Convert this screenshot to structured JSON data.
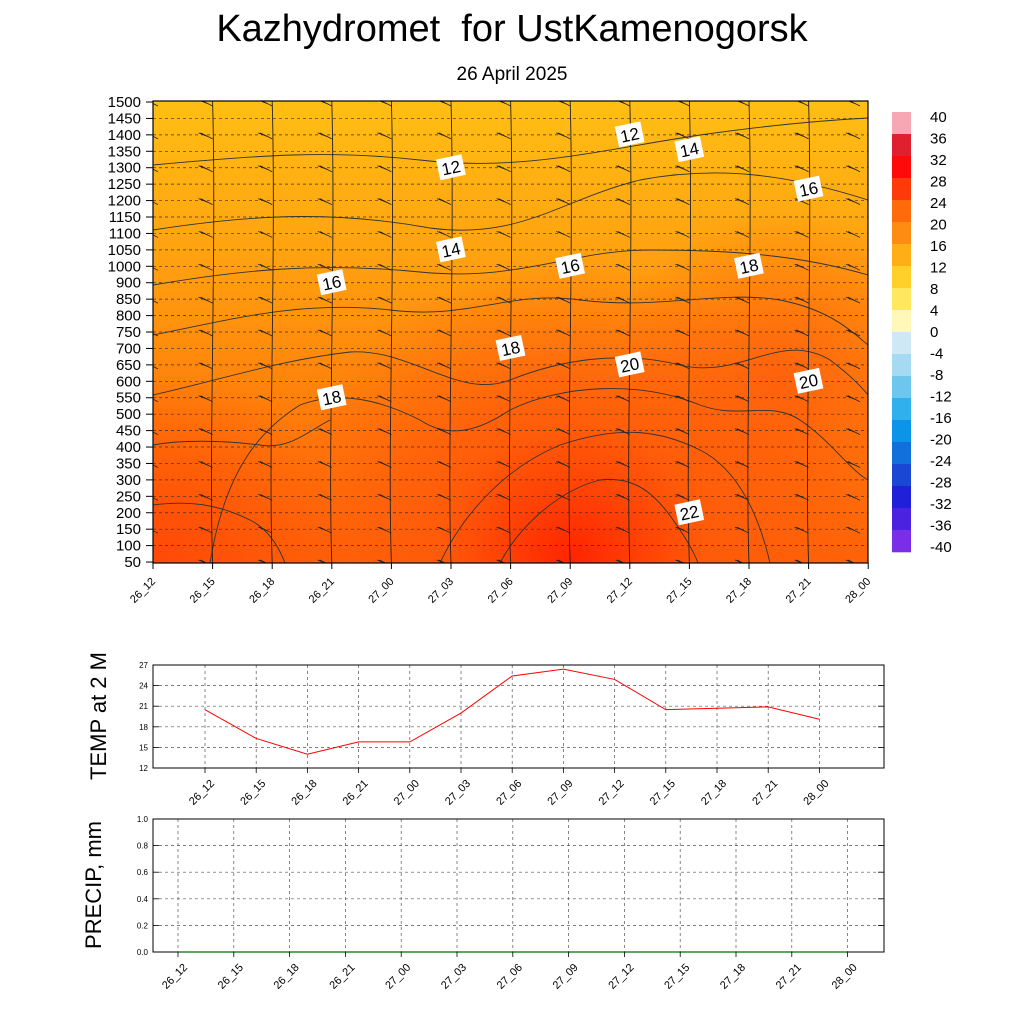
{
  "header": {
    "title": "Kazhydromet  for UstKamenogorsk",
    "date": "26 April 2025"
  },
  "time_labels": [
    "26_12",
    "26_15",
    "26_18",
    "26_21",
    "27_00",
    "27_03",
    "27_06",
    "27_09",
    "27_12",
    "27_15",
    "27_18",
    "27_21",
    "28_00"
  ],
  "colors": {
    "temp_line": "#ff0000",
    "precip_line": "#007000",
    "grid": "#555555"
  },
  "chart_data": [
    {
      "type": "heatmap",
      "name": "cross-section",
      "x_categories": [
        "26_12",
        "26_15",
        "26_18",
        "26_21",
        "27_00",
        "27_03",
        "27_06",
        "27_09",
        "27_12",
        "27_15",
        "27_18",
        "27_21",
        "28_00"
      ],
      "y_ticks": [
        1500,
        1450,
        1400,
        1350,
        1300,
        1250,
        1200,
        1150,
        1100,
        1050,
        1000,
        900,
        850,
        800,
        750,
        700,
        650,
        600,
        550,
        500,
        450,
        400,
        350,
        300,
        250,
        200,
        150,
        100,
        50
      ],
      "ylim": [
        50,
        1500
      ],
      "contour_labels": [
        {
          "value": "12",
          "x": "27_03",
          "level": 1300
        },
        {
          "value": "12",
          "x": "27_12",
          "level": 1400
        },
        {
          "value": "14",
          "x": "27_15",
          "level": 1355
        },
        {
          "value": "16",
          "x": "27_21",
          "level": 1235
        },
        {
          "value": "14",
          "x": "27_03",
          "level": 1050
        },
        {
          "value": "16",
          "x": "26_21",
          "level": 900
        },
        {
          "value": "16",
          "x": "27_09",
          "level": 1000
        },
        {
          "value": "18",
          "x": "27_18",
          "level": 1000
        },
        {
          "value": "18",
          "x": "27_06",
          "level": 700
        },
        {
          "value": "20",
          "x": "27_12",
          "level": 650
        },
        {
          "value": "20",
          "x": "27_21",
          "level": 600
        },
        {
          "value": "18",
          "x": "26_21",
          "level": 550
        },
        {
          "value": "22",
          "x": "27_15",
          "level": 200
        }
      ],
      "colorbar": {
        "labels": [
          "40",
          "36",
          "32",
          "28",
          "24",
          "20",
          "16",
          "12",
          "8",
          "4",
          "0",
          "-4",
          "-8",
          "-12",
          "-16",
          "-20",
          "-24",
          "-28",
          "-32",
          "-36",
          "-40"
        ]
      }
    },
    {
      "type": "line",
      "name": "temperature",
      "ylabel": "TEMP at 2 M",
      "x": [
        "26_12",
        "26_15",
        "26_18",
        "26_21",
        "27_00",
        "27_03",
        "27_06",
        "27_09",
        "27_12",
        "27_15",
        "27_18",
        "27_21",
        "28_00"
      ],
      "y": [
        20.5,
        16.3,
        14.0,
        15.8,
        15.8,
        20.0,
        25.4,
        26.4,
        24.9,
        20.5,
        20.7,
        20.9,
        19.1
      ],
      "yticks": [
        "27",
        "24",
        "21",
        "18",
        "15",
        "12"
      ],
      "ylim": [
        12,
        27
      ],
      "grid": true
    },
    {
      "type": "line",
      "name": "precipitation",
      "ylabel": "PRECIP, mm",
      "x": [
        "26_12",
        "26_15",
        "26_18",
        "26_21",
        "27_00",
        "27_03",
        "27_06",
        "27_09",
        "27_12",
        "27_15",
        "27_18",
        "27_21",
        "28_00"
      ],
      "y": [
        0,
        0,
        0,
        0,
        0,
        0,
        0,
        0,
        0,
        0,
        0,
        0,
        0
      ],
      "yticks": [
        "1.0",
        "0.8",
        "0.6",
        "0.4",
        "0.2",
        "0.0"
      ],
      "ylim": [
        0,
        1
      ],
      "grid": true
    }
  ]
}
